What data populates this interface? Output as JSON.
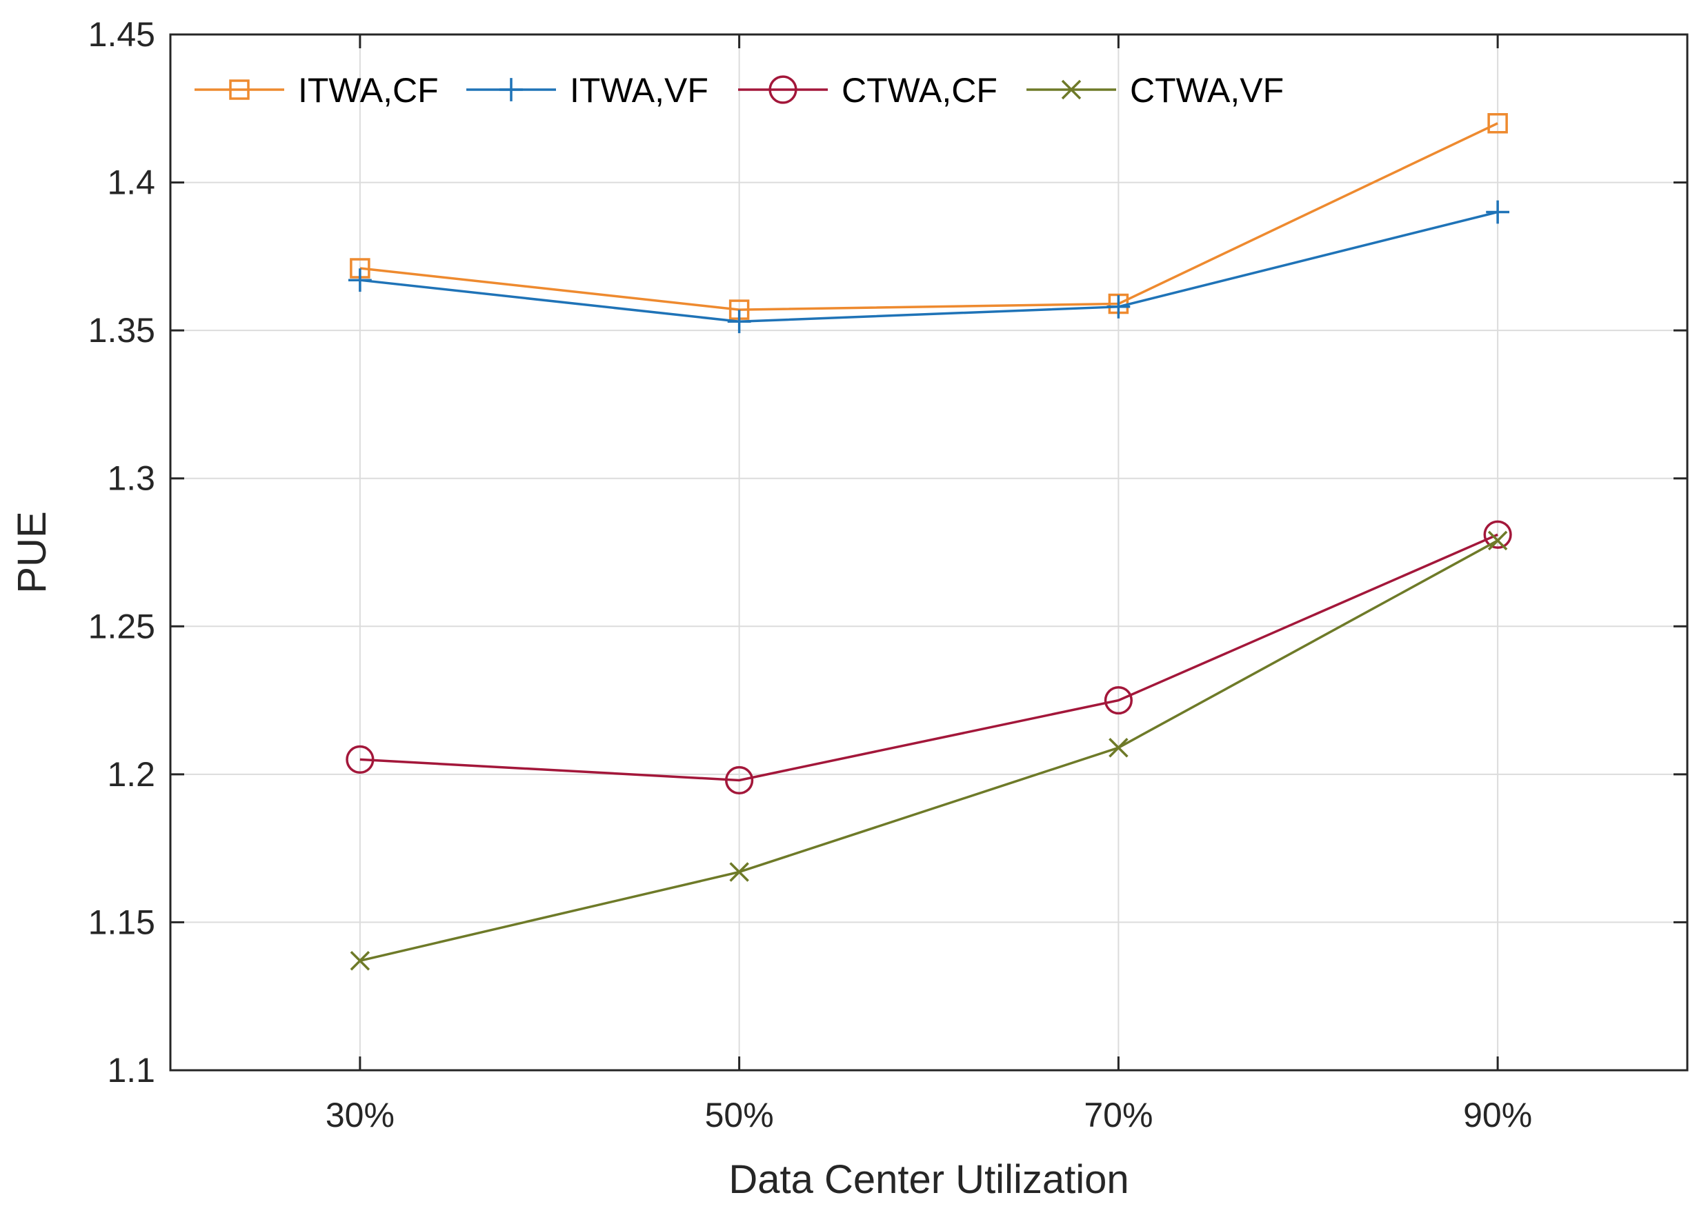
{
  "chart_data": {
    "type": "line",
    "title": "",
    "xlabel": "Data Center Utilization",
    "ylabel": "PUE",
    "categories": [
      "30%",
      "50%",
      "70%",
      "90%"
    ],
    "x": [
      30,
      50,
      70,
      90
    ],
    "xlim": [
      20,
      100
    ],
    "ylim": [
      1.1,
      1.45
    ],
    "yticks": [
      "1.1",
      "1.15",
      "1.2",
      "1.25",
      "1.3",
      "1.35",
      "1.4",
      "1.45"
    ],
    "grid": true,
    "legend_position": "top",
    "series": [
      {
        "name": "ITWA,CF",
        "marker": "square",
        "color": "#EE8A2F",
        "values": [
          1.371,
          1.357,
          1.359,
          1.42
        ]
      },
      {
        "name": "ITWA,VF",
        "marker": "plus",
        "color": "#1F73B7",
        "values": [
          1.367,
          1.353,
          1.358,
          1.39
        ]
      },
      {
        "name": "CTWA,CF",
        "marker": "circle",
        "color": "#A3173A",
        "values": [
          1.205,
          1.198,
          1.225,
          1.281
        ]
      },
      {
        "name": "CTWA,VF",
        "marker": "x",
        "color": "#6E7A28",
        "values": [
          1.137,
          1.167,
          1.209,
          1.279
        ]
      }
    ]
  }
}
